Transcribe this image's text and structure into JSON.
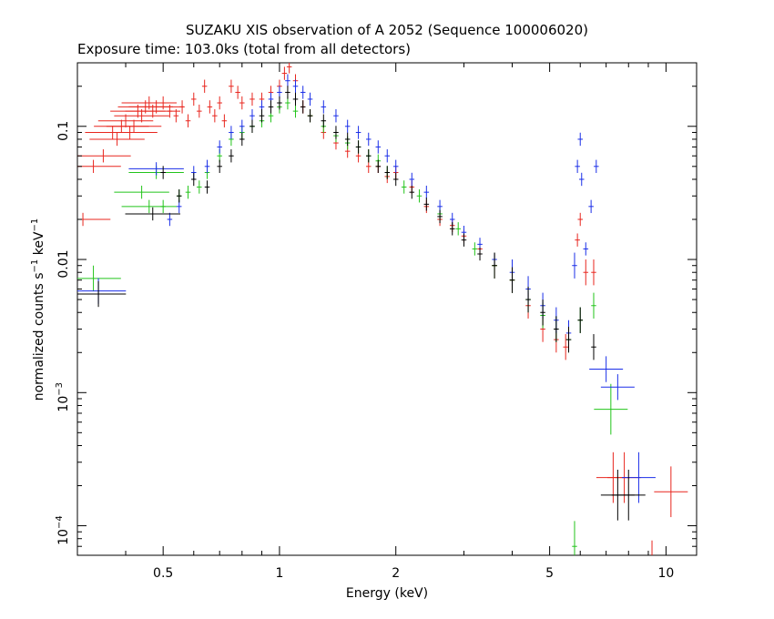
{
  "chart_data": {
    "type": "scatter",
    "title": "SUZAKU XIS observation of A 2052 (Sequence 100006020)",
    "subtitle": "Exposure time: 103.0ks (total from all detectors)",
    "xlabel": "Energy (keV)",
    "ylabel_main": "normalized counts s",
    "ylabel_exp1": "−1",
    "ylabel_mid": " keV",
    "ylabel_exp2": "−1",
    "x_scale": "log",
    "y_scale": "log",
    "xlim": [
      0.3,
      12
    ],
    "ylim": [
      6e-05,
      0.3
    ],
    "x_ticks": [
      {
        "v": 0.5,
        "label": "0.5"
      },
      {
        "v": 1,
        "label": "1"
      },
      {
        "v": 2,
        "label": "2"
      },
      {
        "v": 5,
        "label": "5"
      },
      {
        "v": 10,
        "label": "10"
      }
    ],
    "y_ticks": [
      {
        "v": 0.1,
        "base": "0.1",
        "exp": ""
      },
      {
        "v": 0.01,
        "base": "0.01",
        "exp": ""
      },
      {
        "v": 0.001,
        "base": "10",
        "exp": "−3"
      },
      {
        "v": 0.0001,
        "base": "10",
        "exp": "−4"
      }
    ],
    "grid": false,
    "series": [
      {
        "color": "#e8261e",
        "points": [
          [
            0.31,
            0.02
          ],
          [
            0.33,
            0.05
          ],
          [
            0.35,
            0.06
          ],
          [
            0.37,
            0.09
          ],
          [
            0.38,
            0.08
          ],
          [
            0.39,
            0.1
          ],
          [
            0.4,
            0.11
          ],
          [
            0.41,
            0.09
          ],
          [
            0.42,
            0.1
          ],
          [
            0.43,
            0.13
          ],
          [
            0.44,
            0.12
          ],
          [
            0.45,
            0.14
          ],
          [
            0.46,
            0.15
          ],
          [
            0.47,
            0.13
          ],
          [
            0.48,
            0.14
          ],
          [
            0.5,
            0.15
          ],
          [
            0.52,
            0.13
          ],
          [
            0.54,
            0.12
          ],
          [
            0.56,
            0.14
          ],
          [
            0.58,
            0.11
          ],
          [
            0.6,
            0.16
          ],
          [
            0.62,
            0.13
          ],
          [
            0.64,
            0.2
          ],
          [
            0.66,
            0.14
          ],
          [
            0.68,
            0.12
          ],
          [
            0.7,
            0.15
          ],
          [
            0.72,
            0.11
          ],
          [
            0.75,
            0.2
          ],
          [
            0.78,
            0.18
          ],
          [
            0.8,
            0.15
          ],
          [
            0.85,
            0.16
          ],
          [
            0.9,
            0.16
          ],
          [
            0.95,
            0.18
          ],
          [
            1.0,
            0.2
          ],
          [
            1.03,
            0.25
          ],
          [
            1.06,
            0.28
          ],
          [
            1.1,
            0.22
          ],
          [
            1.15,
            0.14
          ],
          [
            1.2,
            0.12
          ],
          [
            1.3,
            0.09
          ],
          [
            1.4,
            0.075
          ],
          [
            1.5,
            0.065
          ],
          [
            1.6,
            0.06
          ],
          [
            1.7,
            0.05
          ],
          [
            1.8,
            0.05
          ],
          [
            1.9,
            0.042
          ],
          [
            2.0,
            0.045
          ],
          [
            2.2,
            0.035
          ],
          [
            2.4,
            0.025
          ],
          [
            2.6,
            0.02
          ],
          [
            2.8,
            0.018
          ],
          [
            3.0,
            0.015
          ],
          [
            3.3,
            0.012
          ],
          [
            3.6,
            0.009
          ],
          [
            4.0,
            0.007
          ],
          [
            4.4,
            0.0045
          ],
          [
            4.8,
            0.003
          ],
          [
            5.2,
            0.0025
          ],
          [
            5.5,
            0.0022
          ],
          [
            5.9,
            0.014
          ],
          [
            6.0,
            0.02
          ],
          [
            6.2,
            0.008
          ],
          [
            6.5,
            0.008
          ],
          [
            7.3,
            0.00023
          ],
          [
            7.8,
            0.00023
          ],
          [
            10.3,
            0.00018
          ],
          [
            9.2,
            5e-05
          ]
        ]
      },
      {
        "color": "#22c41a",
        "points": [
          [
            0.33,
            0.0072
          ],
          [
            0.44,
            0.032
          ],
          [
            0.46,
            0.025
          ],
          [
            0.48,
            0.045
          ],
          [
            0.5,
            0.025
          ],
          [
            0.55,
            0.03
          ],
          [
            0.58,
            0.032
          ],
          [
            0.62,
            0.035
          ],
          [
            0.65,
            0.045
          ],
          [
            0.7,
            0.06
          ],
          [
            0.75,
            0.08
          ],
          [
            0.8,
            0.09
          ],
          [
            0.85,
            0.1
          ],
          [
            0.9,
            0.11
          ],
          [
            0.95,
            0.12
          ],
          [
            1.0,
            0.14
          ],
          [
            1.05,
            0.15
          ],
          [
            1.1,
            0.13
          ],
          [
            1.2,
            0.12
          ],
          [
            1.3,
            0.1
          ],
          [
            1.4,
            0.085
          ],
          [
            1.5,
            0.075
          ],
          [
            1.6,
            0.07
          ],
          [
            1.7,
            0.06
          ],
          [
            1.8,
            0.055
          ],
          [
            1.9,
            0.045
          ],
          [
            2.1,
            0.035
          ],
          [
            2.3,
            0.03
          ],
          [
            2.6,
            0.022
          ],
          [
            2.9,
            0.017
          ],
          [
            3.2,
            0.012
          ],
          [
            3.6,
            0.009
          ],
          [
            4.0,
            0.007
          ],
          [
            4.4,
            0.005
          ],
          [
            4.8,
            0.0038
          ],
          [
            5.2,
            0.003
          ],
          [
            5.6,
            0.0025
          ],
          [
            6.0,
            0.0035
          ],
          [
            6.5,
            0.0045
          ],
          [
            7.2,
            0.00075
          ],
          [
            5.8,
            7e-05
          ]
        ]
      },
      {
        "color": "#1a2ee8",
        "points": [
          [
            0.34,
            0.0058
          ],
          [
            0.48,
            0.048
          ],
          [
            0.52,
            0.02
          ],
          [
            0.55,
            0.025
          ],
          [
            0.6,
            0.045
          ],
          [
            0.65,
            0.05
          ],
          [
            0.7,
            0.07
          ],
          [
            0.75,
            0.09
          ],
          [
            0.8,
            0.1
          ],
          [
            0.85,
            0.12
          ],
          [
            0.9,
            0.14
          ],
          [
            0.95,
            0.16
          ],
          [
            1.0,
            0.18
          ],
          [
            1.05,
            0.22
          ],
          [
            1.1,
            0.2
          ],
          [
            1.15,
            0.18
          ],
          [
            1.2,
            0.16
          ],
          [
            1.3,
            0.14
          ],
          [
            1.4,
            0.12
          ],
          [
            1.5,
            0.1
          ],
          [
            1.6,
            0.09
          ],
          [
            1.7,
            0.08
          ],
          [
            1.8,
            0.07
          ],
          [
            1.9,
            0.06
          ],
          [
            2.0,
            0.05
          ],
          [
            2.2,
            0.04
          ],
          [
            2.4,
            0.032
          ],
          [
            2.6,
            0.025
          ],
          [
            2.8,
            0.02
          ],
          [
            3.0,
            0.016
          ],
          [
            3.3,
            0.013
          ],
          [
            3.6,
            0.01
          ],
          [
            4.0,
            0.008
          ],
          [
            4.4,
            0.006
          ],
          [
            4.8,
            0.0045
          ],
          [
            5.2,
            0.0035
          ],
          [
            5.6,
            0.0028
          ],
          [
            5.8,
            0.009
          ],
          [
            5.9,
            0.05
          ],
          [
            6.0,
            0.08
          ],
          [
            6.05,
            0.04
          ],
          [
            6.2,
            0.012
          ],
          [
            6.4,
            0.025
          ],
          [
            6.6,
            0.05
          ],
          [
            7.0,
            0.0015
          ],
          [
            7.5,
            0.0011
          ],
          [
            8.5,
            0.00023
          ]
        ]
      },
      {
        "color": "#000000",
        "points": [
          [
            0.34,
            0.0055
          ],
          [
            0.47,
            0.022
          ],
          [
            0.5,
            0.045
          ],
          [
            0.55,
            0.03
          ],
          [
            0.6,
            0.04
          ],
          [
            0.65,
            0.035
          ],
          [
            0.7,
            0.05
          ],
          [
            0.75,
            0.06
          ],
          [
            0.8,
            0.08
          ],
          [
            0.85,
            0.1
          ],
          [
            0.9,
            0.12
          ],
          [
            0.95,
            0.14
          ],
          [
            1.0,
            0.15
          ],
          [
            1.05,
            0.18
          ],
          [
            1.1,
            0.16
          ],
          [
            1.15,
            0.14
          ],
          [
            1.2,
            0.12
          ],
          [
            1.3,
            0.11
          ],
          [
            1.4,
            0.09
          ],
          [
            1.5,
            0.08
          ],
          [
            1.6,
            0.07
          ],
          [
            1.7,
            0.06
          ],
          [
            1.8,
            0.05
          ],
          [
            1.9,
            0.045
          ],
          [
            2.0,
            0.04
          ],
          [
            2.2,
            0.032
          ],
          [
            2.4,
            0.026
          ],
          [
            2.6,
            0.021
          ],
          [
            2.8,
            0.017
          ],
          [
            3.0,
            0.014
          ],
          [
            3.3,
            0.011
          ],
          [
            3.6,
            0.009
          ],
          [
            4.0,
            0.007
          ],
          [
            4.4,
            0.005
          ],
          [
            4.8,
            0.004
          ],
          [
            5.2,
            0.003
          ],
          [
            5.6,
            0.0025
          ],
          [
            6.0,
            0.0035
          ],
          [
            6.5,
            0.0022
          ],
          [
            7.5,
            0.00017
          ],
          [
            8.0,
            0.00017
          ]
        ]
      }
    ]
  }
}
